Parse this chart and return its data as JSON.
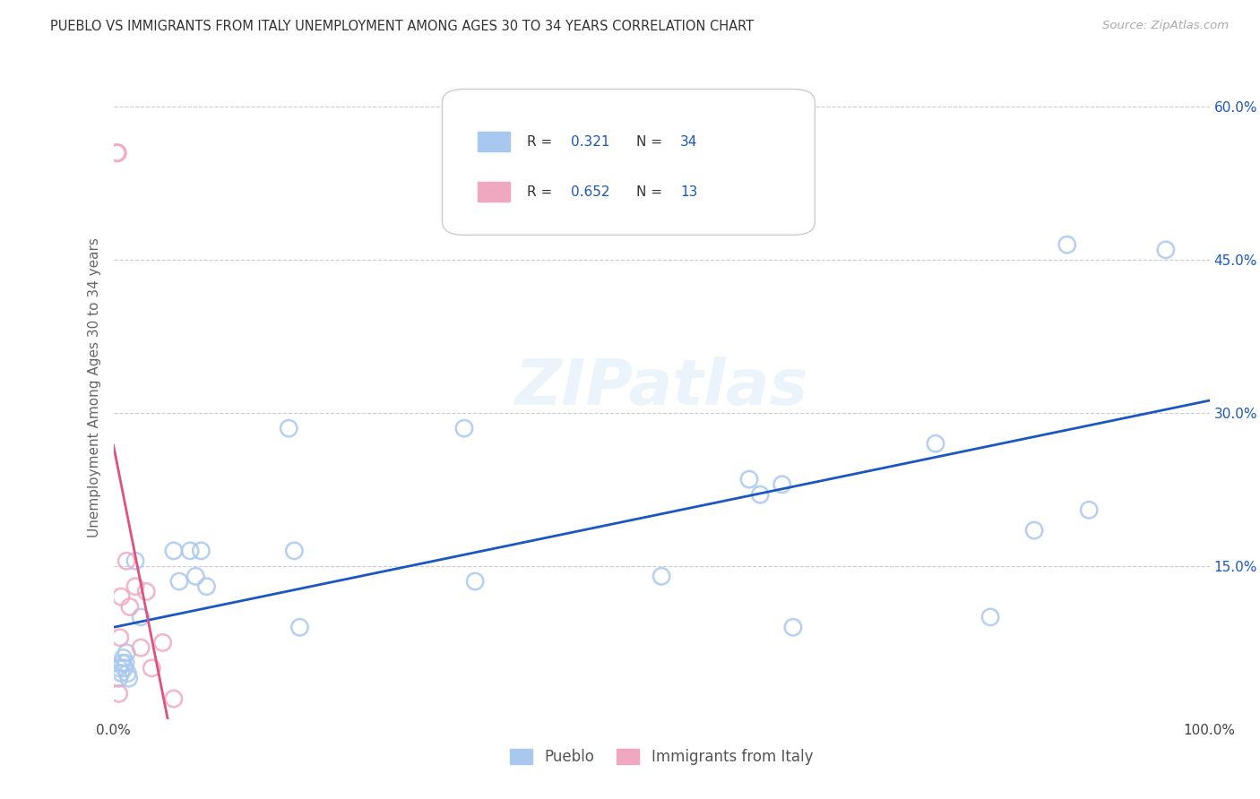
{
  "title": "PUEBLO VS IMMIGRANTS FROM ITALY UNEMPLOYMENT AMONG AGES 30 TO 34 YEARS CORRELATION CHART",
  "source": "Source: ZipAtlas.com",
  "ylabel": "Unemployment Among Ages 30 to 34 years",
  "xlim": [
    0.0,
    1.0
  ],
  "ylim": [
    0.0,
    0.65
  ],
  "xticks": [
    0.0,
    0.2,
    0.4,
    0.6,
    0.8,
    1.0
  ],
  "xtick_labels": [
    "0.0%",
    "",
    "",
    "",
    "",
    "100.0%"
  ],
  "yticks": [
    0.0,
    0.15,
    0.3,
    0.45,
    0.6
  ],
  "ytick_labels": [
    "",
    "15.0%",
    "30.0%",
    "45.0%",
    "60.0%"
  ],
  "pueblo_color": "#a8c8f0",
  "italy_color": "#f0a8c0",
  "pueblo_line_color": "#1a56c4",
  "italy_line_color": "#e05080",
  "background_color": "#ffffff",
  "grid_color": "#cccccc",
  "R_pueblo": 0.321,
  "N_pueblo": 34,
  "R_italy": 0.652,
  "N_italy": 13,
  "pueblo_x": [
    0.005,
    0.005,
    0.007,
    0.008,
    0.009,
    0.01,
    0.011,
    0.012,
    0.013,
    0.014,
    0.02,
    0.025,
    0.055,
    0.06,
    0.07,
    0.075,
    0.08,
    0.085,
    0.16,
    0.165,
    0.17,
    0.32,
    0.33,
    0.5,
    0.58,
    0.59,
    0.61,
    0.62,
    0.75,
    0.8,
    0.84,
    0.87,
    0.89,
    0.96
  ],
  "pueblo_y": [
    0.05,
    0.04,
    0.045,
    0.055,
    0.06,
    0.05,
    0.055,
    0.065,
    0.045,
    0.04,
    0.155,
    0.1,
    0.165,
    0.135,
    0.165,
    0.14,
    0.165,
    0.13,
    0.285,
    0.165,
    0.09,
    0.285,
    0.135,
    0.14,
    0.235,
    0.22,
    0.23,
    0.09,
    0.27,
    0.1,
    0.185,
    0.465,
    0.205,
    0.46
  ],
  "italy_x": [
    0.003,
    0.004,
    0.005,
    0.006,
    0.007,
    0.012,
    0.015,
    0.02,
    0.025,
    0.03,
    0.035,
    0.045,
    0.055
  ],
  "italy_y": [
    0.555,
    0.555,
    0.025,
    0.08,
    0.12,
    0.155,
    0.11,
    0.13,
    0.07,
    0.125,
    0.05,
    0.075,
    0.02
  ],
  "marker_size": 80,
  "alpha": 0.5,
  "linewidth": 2.0
}
